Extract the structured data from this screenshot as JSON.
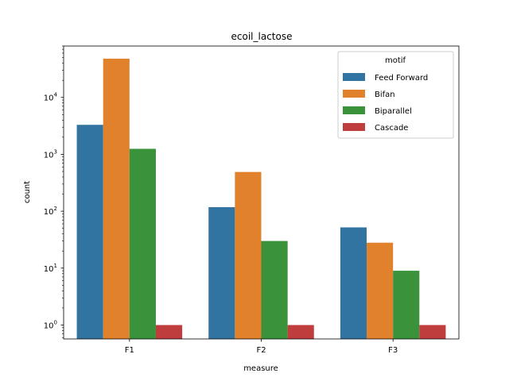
{
  "chart_data": {
    "type": "bar",
    "title": "ecoil_lactose",
    "xlabel": "measure",
    "ylabel": "count",
    "yscale": "log",
    "ylim": [
      0.57,
      80000
    ],
    "yticks": [
      {
        "value": 1,
        "base": "10",
        "exp": "0"
      },
      {
        "value": 10,
        "base": "10",
        "exp": "1"
      },
      {
        "value": 100,
        "base": "10",
        "exp": "2"
      },
      {
        "value": 1000,
        "base": "10",
        "exp": "3"
      },
      {
        "value": 10000,
        "base": "10",
        "exp": "4"
      }
    ],
    "categories": [
      "F1",
      "F2",
      "F3"
    ],
    "legend": {
      "title": "motif",
      "position": "top-right"
    },
    "series": [
      {
        "name": "Feed Forward",
        "color": "#3274a1",
        "values": [
          3300,
          118,
          52
        ]
      },
      {
        "name": "Bifan",
        "color": "#e1812c",
        "values": [
          48000,
          490,
          28
        ]
      },
      {
        "name": "Biparallel",
        "color": "#3a923a",
        "values": [
          1250,
          30,
          9
        ]
      },
      {
        "name": "Cascade",
        "color": "#c03d3e",
        "values": [
          1,
          1,
          1
        ]
      }
    ]
  }
}
